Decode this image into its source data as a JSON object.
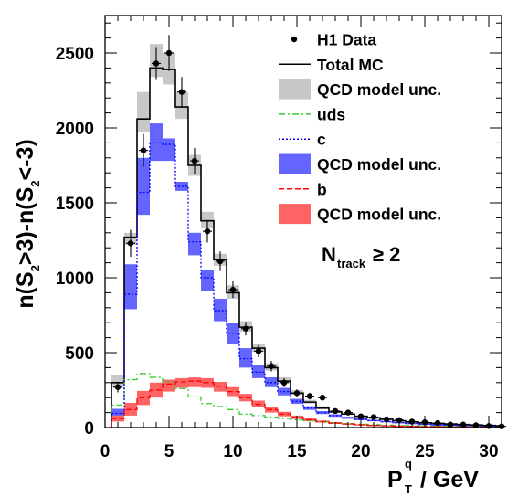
{
  "chart_data": {
    "type": "histogram",
    "xlim": [
      0,
      31
    ],
    "ylim": [
      0,
      2750
    ],
    "x_ticks": [
      0,
      5,
      10,
      15,
      20,
      25,
      30
    ],
    "y_ticks": [
      0,
      500,
      1000,
      1500,
      2000,
      2500
    ],
    "xlabel": {
      "main": "P",
      "sup": "q",
      "sub": "T",
      "unit": " / GeV"
    },
    "ylabel": {
      "p1": "n(S",
      "s1": "2",
      "p2": ">3)-n(S",
      "s2": "2",
      "p3": "<-3)"
    },
    "annotation": {
      "main": "N",
      "sub": "track",
      "rest": "≥ 2"
    },
    "legend": [
      {
        "label": "H1 Data",
        "style": "marker",
        "color": "#000000"
      },
      {
        "label": "Total MC",
        "style": "line",
        "color": "#000000"
      },
      {
        "label": "QCD model unc.",
        "style": "box",
        "color": "#c8c8c8"
      },
      {
        "label": "uds",
        "style": "dashdot",
        "color": "#33cc33"
      },
      {
        "label": "c",
        "style": "dotted",
        "color": "#0000ff"
      },
      {
        "label": "QCD model unc.",
        "style": "box",
        "color": "#6464ff"
      },
      {
        "label": "b",
        "style": "dashed",
        "color": "#ff0000"
      },
      {
        "label": "QCD model unc.",
        "style": "box",
        "color": "#ff6464"
      }
    ],
    "bin_edges": [
      0.5,
      1.5,
      2.5,
      3.5,
      4.5,
      5.5,
      6.5,
      7.5,
      8.5,
      9.5,
      10.5,
      11.5,
      12.5,
      13.5,
      14.5,
      15.5,
      16.5,
      17.5,
      18.5,
      19.5,
      20.5,
      21.5,
      22.5,
      23.5,
      24.5,
      25.5,
      26.5,
      27.5,
      28.5,
      29.5,
      30.5,
      31
    ],
    "series": [
      {
        "name": "Total MC",
        "color": "#000000",
        "band_color": "#c8c8c8",
        "values": [
          300,
          1270,
          2060,
          2400,
          2390,
          2140,
          1750,
          1380,
          1120,
          900,
          670,
          530,
          400,
          310,
          230,
          170,
          130,
          105,
          90,
          75,
          65,
          55,
          45,
          38,
          32,
          28,
          24,
          20,
          17,
          14,
          12
        ],
        "band_low": [
          270,
          1220,
          1970,
          2340,
          2290,
          2060,
          1680,
          1330,
          1080,
          860,
          640,
          505,
          380,
          295,
          218,
          160,
          122,
          98,
          84,
          70,
          60,
          51,
          41,
          35,
          29,
          25,
          21,
          18,
          15,
          12,
          10
        ],
        "band_high": [
          350,
          1300,
          2240,
          2560,
          2500,
          2240,
          1820,
          1440,
          1160,
          950,
          710,
          560,
          430,
          335,
          250,
          185,
          142,
          115,
          98,
          82,
          71,
          60,
          49,
          42,
          35,
          30,
          26,
          22,
          19,
          16,
          14
        ]
      },
      {
        "name": "uds",
        "color": "#33cc33",
        "values": [
          150,
          320,
          360,
          335,
          305,
          260,
          205,
          160,
          140,
          120,
          90,
          80,
          70,
          60,
          52,
          45,
          38,
          30,
          26,
          22,
          19,
          16,
          14,
          12,
          10,
          9,
          8,
          7,
          6,
          5,
          4
        ]
      },
      {
        "name": "c",
        "color": "#0000ff",
        "band_color": "#6464ff",
        "values": [
          95,
          890,
          1570,
          1900,
          1890,
          1610,
          1240,
          1000,
          780,
          630,
          460,
          370,
          300,
          240,
          175,
          130,
          100,
          80,
          65,
          55,
          47,
          40,
          33,
          28,
          23,
          20,
          17,
          14,
          12,
          10,
          8
        ],
        "band_low": [
          65,
          790,
          1420,
          1780,
          1780,
          1580,
          1150,
          910,
          710,
          560,
          400,
          330,
          270,
          215,
          158,
          118,
          90,
          72,
          58,
          49,
          42,
          36,
          29,
          25,
          20,
          17,
          15,
          12,
          10,
          9,
          7
        ],
        "band_high": [
          125,
          1090,
          1800,
          2030,
          1930,
          1640,
          1300,
          1050,
          860,
          700,
          530,
          420,
          335,
          265,
          192,
          142,
          110,
          88,
          72,
          61,
          52,
          44,
          37,
          31,
          26,
          22,
          19,
          16,
          14,
          11,
          9
        ]
      },
      {
        "name": "b",
        "color": "#ff0000",
        "band_color": "#ff6464",
        "values": [
          60,
          120,
          200,
          250,
          290,
          305,
          310,
          300,
          275,
          240,
          200,
          155,
          120,
          90,
          68,
          52,
          40,
          30,
          24,
          19,
          15,
          12,
          10,
          8,
          7,
          6,
          5,
          4,
          3,
          3,
          2
        ],
        "band_low": [
          40,
          80,
          150,
          200,
          240,
          265,
          270,
          265,
          240,
          210,
          175,
          135,
          100,
          75,
          57,
          43,
          33,
          25,
          20,
          15,
          12,
          10,
          8,
          7,
          6,
          5,
          4,
          3,
          3,
          2,
          2
        ],
        "band_high": [
          80,
          165,
          245,
          300,
          320,
          330,
          335,
          330,
          305,
          270,
          225,
          180,
          140,
          105,
          80,
          61,
          47,
          36,
          28,
          22,
          18,
          14,
          12,
          10,
          8,
          7,
          6,
          5,
          4,
          4,
          3
        ]
      }
    ],
    "h1_data": {
      "x": [
        1,
        2,
        3,
        4,
        5,
        6,
        7,
        8,
        9,
        10,
        11,
        12,
        13,
        14,
        15,
        16,
        17,
        18,
        19,
        20,
        21,
        22,
        23,
        24,
        25,
        26,
        27,
        28,
        29,
        30,
        31
      ],
      "y": [
        270,
        1230,
        1850,
        2430,
        2500,
        2240,
        1780,
        1310,
        1110,
        920,
        660,
        510,
        410,
        300,
        230,
        210,
        200,
        110,
        100,
        75,
        70,
        55,
        50,
        40,
        35,
        30,
        20,
        20,
        15,
        10,
        8
      ],
      "err": [
        35,
        90,
        110,
        110,
        120,
        100,
        85,
        75,
        65,
        55,
        45,
        40,
        35,
        30,
        25,
        22,
        20,
        15,
        14,
        12,
        11,
        10,
        9,
        8,
        8,
        7,
        6,
        6,
        5,
        5,
        4
      ]
    }
  }
}
